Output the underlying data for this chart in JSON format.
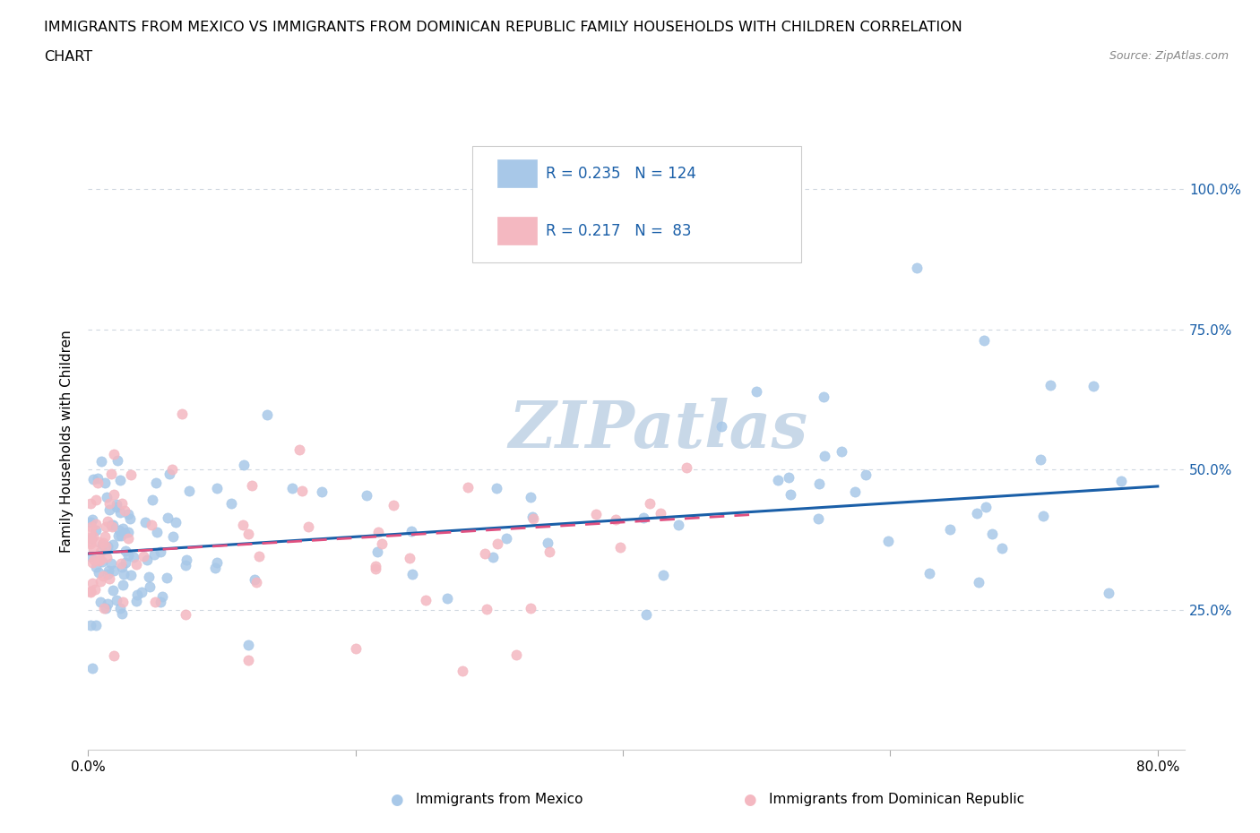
{
  "title_line1": "IMMIGRANTS FROM MEXICO VS IMMIGRANTS FROM DOMINICAN REPUBLIC FAMILY HOUSEHOLDS WITH CHILDREN CORRELATION",
  "title_line2": "CHART",
  "source": "Source: ZipAtlas.com",
  "xlabel_mexico": "Immigrants from Mexico",
  "xlabel_dr": "Immigrants from Dominican Republic",
  "ylabel": "Family Households with Children",
  "xlim": [
    0.0,
    0.82
  ],
  "ylim": [
    0.0,
    1.1
  ],
  "xtick_positions": [
    0.0,
    0.2,
    0.4,
    0.6,
    0.8
  ],
  "xticklabels": [
    "0.0%",
    "",
    "",
    "",
    "80.0%"
  ],
  "ytick_positions": [
    0.25,
    0.5,
    0.75,
    1.0
  ],
  "ytick_labels": [
    "25.0%",
    "50.0%",
    "75.0%",
    "100.0%"
  ],
  "mexico_color": "#a8c8e8",
  "dr_color": "#f4b8c1",
  "mexico_line_color": "#1a5fa8",
  "dr_line_color": "#e05080",
  "dr_line_dash": [
    6,
    4
  ],
  "legend_R_mexico": "0.235",
  "legend_N_mexico": "124",
  "legend_R_dr": "0.217",
  "legend_N_dr": "83",
  "watermark": "ZIPatlas",
  "watermark_color": "#c8d8e8",
  "background_color": "#ffffff",
  "grid_color": "#d0d8e0",
  "title_fontsize": 11.5,
  "axis_fontsize": 11,
  "legend_fontsize": 12
}
